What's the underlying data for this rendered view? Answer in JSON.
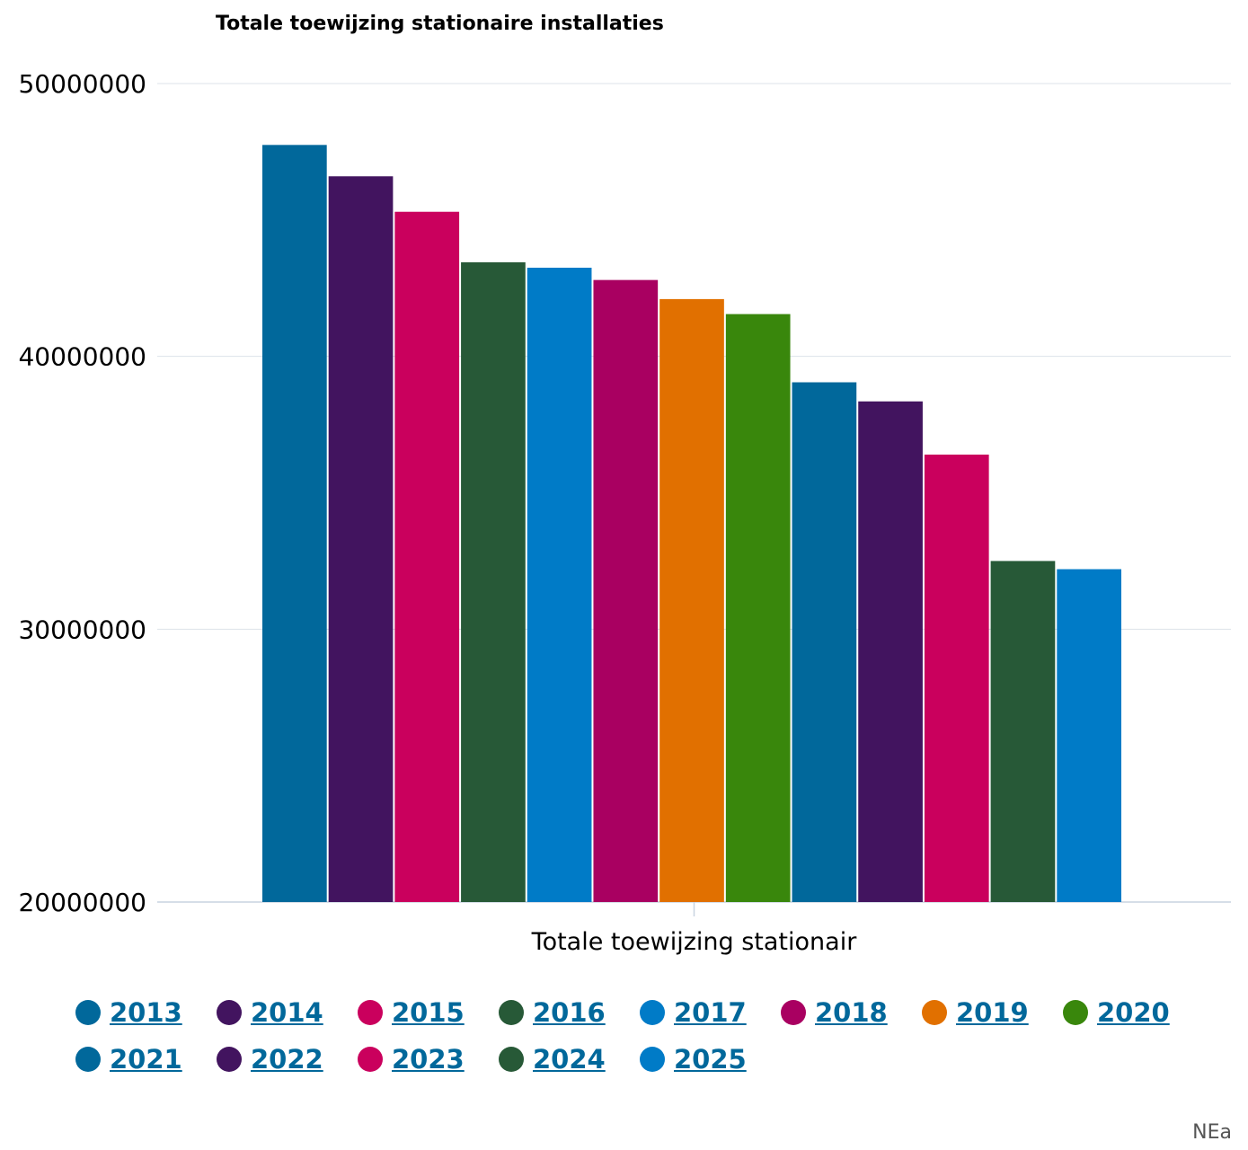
{
  "chart_data": {
    "type": "bar",
    "title": "Totale toewijzing stationaire installaties",
    "categories": [
      "Totale toewijzing stationair"
    ],
    "xlabel": "Totale toewijzing stationair",
    "ylabel": "",
    "ylim": [
      20000000,
      50000000
    ],
    "yticks": [
      "20000000",
      "30000000",
      "40000000",
      "50000000"
    ],
    "grid": true,
    "legend_position": "bottom",
    "series": [
      {
        "name": "2013",
        "values": [
          47750000
        ],
        "color": "#01689b"
      },
      {
        "name": "2014",
        "values": [
          46600000
        ],
        "color": "#42145f"
      },
      {
        "name": "2015",
        "values": [
          45300000
        ],
        "color": "#ca005d"
      },
      {
        "name": "2016",
        "values": [
          43450000
        ],
        "color": "#275937"
      },
      {
        "name": "2017",
        "values": [
          43250000
        ],
        "color": "#007bc7"
      },
      {
        "name": "2018",
        "values": [
          42800000
        ],
        "color": "#a90061"
      },
      {
        "name": "2019",
        "values": [
          42100000
        ],
        "color": "#e17000"
      },
      {
        "name": "2020",
        "values": [
          41550000
        ],
        "color": "#39870c"
      },
      {
        "name": "2021",
        "values": [
          39050000
        ],
        "color": "#01689b"
      },
      {
        "name": "2022",
        "values": [
          38350000
        ],
        "color": "#42145f"
      },
      {
        "name": "2023",
        "values": [
          36400000
        ],
        "color": "#ca005d"
      },
      {
        "name": "2024",
        "values": [
          32500000
        ],
        "color": "#275937"
      },
      {
        "name": "2025",
        "values": [
          32200000
        ],
        "color": "#007bc7"
      }
    ]
  },
  "source_label": "NEa"
}
